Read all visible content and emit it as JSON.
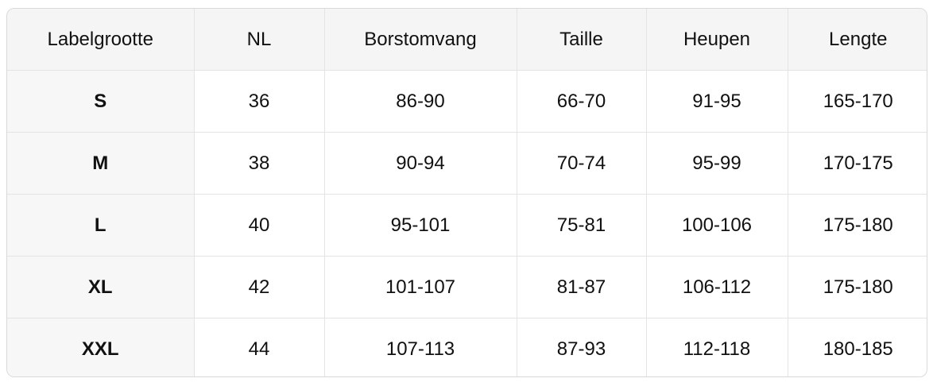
{
  "table": {
    "headers": {
      "label_size": "Labelgrootte",
      "nl": "NL",
      "chest": "Borstomvang",
      "waist": "Taille",
      "hips": "Heupen",
      "length": "Lengte"
    },
    "rows": [
      {
        "size": "S",
        "nl": "36",
        "chest": "86-90",
        "waist": "66-70",
        "hips": "91-95",
        "length": "165-170"
      },
      {
        "size": "M",
        "nl": "38",
        "chest": "90-94",
        "waist": "70-74",
        "hips": "95-99",
        "length": "170-175"
      },
      {
        "size": "L",
        "nl": "40",
        "chest": "95-101",
        "waist": "75-81",
        "hips": "100-106",
        "length": "175-180"
      },
      {
        "size": "XL",
        "nl": "42",
        "chest": "101-107",
        "waist": "81-87",
        "hips": "106-112",
        "length": "175-180"
      },
      {
        "size": "XXL",
        "nl": "44",
        "chest": "107-113",
        "waist": "87-93",
        "hips": "112-118",
        "length": "180-185"
      }
    ]
  },
  "colors": {
    "header_bg": "#f5f5f5",
    "size_col_bg": "#f7f7f8",
    "grid_border": "#e4e4e4",
    "outer_border": "#d9d9d9",
    "text": "#111111"
  }
}
